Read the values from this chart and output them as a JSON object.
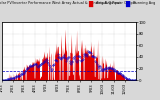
{
  "title": "Solar PV/Inverter Performance West Array Actual & Running Avg Power Output",
  "bg_color": "#d8d8d8",
  "plot_bg": "#ffffff",
  "grid_color": "#aaaaaa",
  "bar_color": "#dd0000",
  "avg_color": "#0000cc",
  "legend_actual_color": "#dd0000",
  "legend_avg_color": "#0000cc",
  "legend_actual_label": "Actual Output",
  "legend_avg_label": "Running Avg",
  "ylim": [
    0,
    100
  ],
  "n_points": 365,
  "avg_line_y": 15,
  "ytick_vals": [
    0,
    20,
    40,
    60,
    80,
    100
  ],
  "month_starts": [
    0,
    31,
    59,
    90,
    120,
    151,
    181,
    212,
    243,
    273,
    304,
    334
  ],
  "month_labels": [
    "1/03",
    "2/03",
    "3/03",
    "4/03",
    "5/03",
    "6/03",
    "7/03",
    "8/03",
    "9/03",
    "10/03",
    "11/03",
    "12/03"
  ]
}
